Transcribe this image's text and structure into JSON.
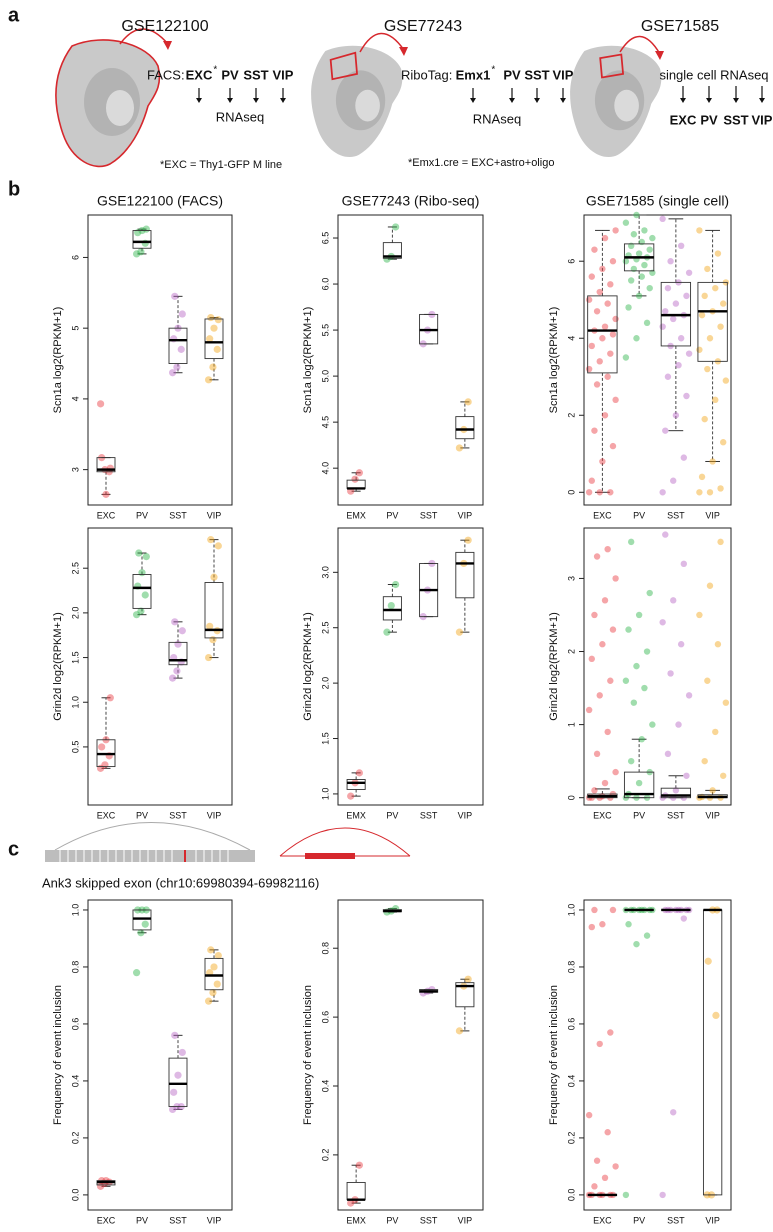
{
  "panel_labels": [
    "a",
    "b",
    "c"
  ],
  "schematics": [
    {
      "dataset": "GSE122100",
      "method": "FACS:",
      "cells": [
        {
          "name": "EXC",
          "color": "#e8383d",
          "star": "*"
        },
        {
          "name": "PV",
          "color": "#2db34a"
        },
        {
          "name": "SST",
          "color": "#b563c4"
        },
        {
          "name": "VIP",
          "color": "#f2a516"
        }
      ],
      "readout": "RNAseq",
      "footnote": "*EXC = Thy1-GFP M line"
    },
    {
      "dataset": "GSE77243",
      "method": "RiboTag:",
      "cells": [
        {
          "name": "Emx1",
          "color": "#e8383d",
          "star": "*"
        },
        {
          "name": "PV",
          "color": "#2db34a"
        },
        {
          "name": "SST",
          "color": "#b563c4"
        },
        {
          "name": "VIP",
          "color": "#f2a516"
        }
      ],
      "readout": "RNAseq",
      "footnote": "*Emx1.cre = EXC+astro+oligo"
    },
    {
      "dataset": "GSE71585",
      "method": "single cell RNAseq",
      "cells": [
        {
          "name": "EXC",
          "color": "#e8383d"
        },
        {
          "name": "PV",
          "color": "#2db34a"
        },
        {
          "name": "SST",
          "color": "#b563c4"
        },
        {
          "name": "VIP",
          "color": "#f2a516"
        }
      ]
    }
  ],
  "event_title": "Ank3 skipped exon (chr10:69980394-69982116)",
  "chart_data": [
    {
      "type": "box",
      "title": "GSE122100 (FACS)",
      "y_label": "Scn1a log2(RPKM+1)",
      "ylim": [
        2.5,
        6.6
      ],
      "yticks": [
        3,
        4,
        5,
        6
      ],
      "series": [
        {
          "name": "EXC",
          "color": "#e8383d",
          "whislo": 2.65,
          "q1": 2.97,
          "median": 3.0,
          "q3": 3.17,
          "whishi": 3.17,
          "points": [
            3.93,
            3.0,
            2.97,
            3.17,
            2.65,
            3.02
          ]
        },
        {
          "name": "PV",
          "color": "#2db34a",
          "whislo": 6.05,
          "q1": 6.13,
          "median": 6.22,
          "q3": 6.38,
          "whishi": 6.4,
          "points": [
            6.05,
            6.08,
            6.2,
            6.35,
            6.38,
            6.4
          ]
        },
        {
          "name": "SST",
          "color": "#b563c4",
          "whislo": 4.37,
          "q1": 4.5,
          "median": 4.83,
          "q3": 5.0,
          "whishi": 5.45,
          "points": [
            4.37,
            4.45,
            4.7,
            4.85,
            5.0,
            5.2,
            5.45
          ]
        },
        {
          "name": "VIP",
          "color": "#f2a516",
          "whislo": 4.27,
          "q1": 4.57,
          "median": 4.8,
          "q3": 5.13,
          "whishi": 5.15,
          "points": [
            4.27,
            4.45,
            4.7,
            4.85,
            5.0,
            5.12,
            5.15
          ]
        }
      ]
    },
    {
      "type": "box",
      "title": "GSE77243 (Ribo-seq)",
      "y_label": "Scn1a log2(RPKM+1)",
      "ylim": [
        3.6,
        6.75
      ],
      "yticks": [
        {
          "value": 4,
          "label": "4.0"
        },
        4.5,
        {
          "value": 5,
          "label": "5.0"
        },
        5.5,
        {
          "value": 6,
          "label": "6.0"
        },
        6.5
      ],
      "series": [
        {
          "name": "EMX",
          "color": "#e8383d",
          "whislo": 3.75,
          "q1": 3.78,
          "median": 3.78,
          "q3": 3.87,
          "whishi": 3.95,
          "points": [
            3.75,
            3.88,
            3.95
          ]
        },
        {
          "name": "PV",
          "color": "#2db34a",
          "whislo": 6.27,
          "q1": 6.28,
          "median": 6.3,
          "q3": 6.45,
          "whishi": 6.62,
          "points": [
            6.27,
            6.3,
            6.62
          ]
        },
        {
          "name": "SST",
          "color": "#b563c4",
          "whislo": 5.35,
          "q1": 5.35,
          "median": 5.5,
          "q3": 5.67,
          "whishi": 5.67,
          "points": [
            5.35,
            5.5,
            5.67
          ]
        },
        {
          "name": "VIP",
          "color": "#f2a516",
          "whislo": 4.22,
          "q1": 4.32,
          "median": 4.42,
          "q3": 4.56,
          "whishi": 4.72,
          "points": [
            4.22,
            4.42,
            4.72
          ]
        }
      ]
    },
    {
      "type": "box",
      "title": "GSE71585 (single cell)",
      "y_label": "Scn1a log2(RPKM+1)",
      "ylim": [
        -0.33,
        7.2
      ],
      "yticks": [
        0,
        2,
        4,
        6
      ],
      "series": [
        {
          "name": "EXC",
          "color": "#e8383d",
          "whislo": 0,
          "q1": 3.1,
          "median": 4.2,
          "q3": 5.1,
          "whishi": 6.8,
          "points": [
            0,
            0,
            0,
            0.3,
            0.8,
            1.2,
            1.6,
            2.0,
            2.4,
            2.8,
            3.0,
            3.2,
            3.4,
            3.6,
            3.8,
            4.0,
            4.1,
            4.2,
            4.3,
            4.5,
            4.7,
            4.9,
            5.0,
            5.2,
            5.4,
            5.6,
            5.8,
            6.0,
            6.3,
            6.6,
            6.8
          ]
        },
        {
          "name": "PV",
          "color": "#2db34a",
          "whislo": 5.1,
          "q1": 5.75,
          "median": 6.1,
          "q3": 6.45,
          "whishi": 7.2,
          "points": [
            3.5,
            4.0,
            4.4,
            4.8,
            5.1,
            5.3,
            5.5,
            5.6,
            5.7,
            5.8,
            5.9,
            6.0,
            6.05,
            6.1,
            6.15,
            6.2,
            6.3,
            6.4,
            6.5,
            6.6,
            6.7,
            6.8,
            7.0,
            7.2
          ]
        },
        {
          "name": "SST",
          "color": "#b563c4",
          "whislo": 1.6,
          "q1": 3.8,
          "median": 4.6,
          "q3": 5.45,
          "whishi": 7.1,
          "points": [
            0,
            0.3,
            0.9,
            1.6,
            2.0,
            2.5,
            3.0,
            3.3,
            3.6,
            3.8,
            4.0,
            4.3,
            4.5,
            4.6,
            4.7,
            4.9,
            5.1,
            5.3,
            5.45,
            5.7,
            6.0,
            6.4,
            7.1
          ]
        },
        {
          "name": "VIP",
          "color": "#f2a516",
          "whislo": 0.8,
          "q1": 3.4,
          "median": 4.7,
          "q3": 5.45,
          "whishi": 6.8,
          "points": [
            0,
            0,
            0.1,
            0.4,
            0.8,
            1.3,
            1.9,
            2.4,
            2.9,
            3.2,
            3.4,
            3.7,
            4.0,
            4.3,
            4.6,
            4.7,
            4.9,
            5.1,
            5.3,
            5.45,
            5.8,
            6.2,
            6.8
          ]
        }
      ]
    },
    {
      "type": "box",
      "y_label": "Grin2d log2(RPKM+1)",
      "ylim": [
        -0.15,
        2.95
      ],
      "yticks": [
        0.5,
        {
          "value": 1,
          "label": "1.0"
        },
        1.5,
        {
          "value": 2,
          "label": "2.0"
        },
        2.5
      ],
      "series": [
        {
          "name": "EXC",
          "color": "#e8383d",
          "whislo": 0.26,
          "q1": 0.28,
          "median": 0.42,
          "q3": 0.58,
          "whishi": 1.05,
          "points": [
            0.26,
            0.3,
            0.4,
            0.5,
            0.58,
            1.05
          ]
        },
        {
          "name": "PV",
          "color": "#2db34a",
          "whislo": 1.98,
          "q1": 2.05,
          "median": 2.28,
          "q3": 2.43,
          "whishi": 2.67,
          "points": [
            1.98,
            2.02,
            2.2,
            2.3,
            2.45,
            2.63,
            2.67
          ]
        },
        {
          "name": "SST",
          "color": "#b563c4",
          "whislo": 1.27,
          "q1": 1.42,
          "median": 1.47,
          "q3": 1.67,
          "whishi": 1.9,
          "points": [
            1.27,
            1.35,
            1.45,
            1.5,
            1.65,
            1.8,
            1.9
          ]
        },
        {
          "name": "VIP",
          "color": "#f2a516",
          "whislo": 1.5,
          "q1": 1.72,
          "median": 1.81,
          "q3": 2.34,
          "whishi": 2.82,
          "points": [
            1.5,
            1.7,
            1.8,
            1.85,
            2.4,
            2.75,
            2.82
          ]
        }
      ]
    },
    {
      "type": "box",
      "y_label": "Grin2d log2(RPKM+1)",
      "ylim": [
        0.9,
        3.4
      ],
      "yticks": [
        {
          "value": 1,
          "label": "1.0"
        },
        1.5,
        {
          "value": 2,
          "label": "2.0"
        },
        2.5,
        {
          "value": 3,
          "label": "3.0"
        }
      ],
      "series": [
        {
          "name": "EMX",
          "color": "#e8383d",
          "whislo": 0.98,
          "q1": 1.04,
          "median": 1.1,
          "q3": 1.13,
          "whishi": 1.19,
          "points": [
            0.98,
            1.1,
            1.19
          ]
        },
        {
          "name": "PV",
          "color": "#2db34a",
          "whislo": 2.46,
          "q1": 2.57,
          "median": 2.66,
          "q3": 2.78,
          "whishi": 2.89,
          "points": [
            2.46,
            2.7,
            2.89
          ]
        },
        {
          "name": "SST",
          "color": "#b563c4",
          "whislo": 2.6,
          "q1": 2.6,
          "median": 2.84,
          "q3": 3.08,
          "whishi": 3.08,
          "points": [
            2.6,
            2.84,
            3.08
          ]
        },
        {
          "name": "VIP",
          "color": "#f2a516",
          "whislo": 2.46,
          "q1": 2.77,
          "median": 3.08,
          "q3": 3.18,
          "whishi": 3.29,
          "points": [
            2.46,
            3.08,
            3.29
          ]
        }
      ]
    },
    {
      "type": "box",
      "y_label": "Grin2d log2(RPKM+1)",
      "ylim": [
        -0.1,
        3.69
      ],
      "yticks": [
        0,
        1,
        2,
        3
      ],
      "series": [
        {
          "name": "EXC",
          "color": "#e8383d",
          "whislo": 0,
          "q1": 0,
          "median": 0.02,
          "q3": 0.05,
          "whishi": 0.12,
          "points": [
            0,
            0,
            0,
            0,
            0.02,
            0.05,
            0.1,
            0.2,
            0.35,
            0.6,
            0.9,
            1.2,
            1.4,
            1.6,
            1.9,
            2.1,
            2.3,
            2.5,
            2.7,
            3.0,
            3.3,
            3.4
          ]
        },
        {
          "name": "PV",
          "color": "#2db34a",
          "whislo": 0,
          "q1": 0,
          "median": 0.05,
          "q3": 0.35,
          "whishi": 0.8,
          "points": [
            0,
            0,
            0,
            0.05,
            0.2,
            0.35,
            0.5,
            0.8,
            1.0,
            1.3,
            1.5,
            1.6,
            1.8,
            2.0,
            2.3,
            2.5,
            2.8,
            3.5
          ]
        },
        {
          "name": "SST",
          "color": "#b563c4",
          "whislo": 0,
          "q1": 0,
          "median": 0.03,
          "q3": 0.13,
          "whishi": 0.3,
          "points": [
            0,
            0,
            0,
            0.03,
            0.1,
            0.3,
            0.6,
            1.0,
            1.4,
            1.7,
            2.1,
            2.4,
            2.7,
            3.2,
            3.6
          ]
        },
        {
          "name": "VIP",
          "color": "#f2a516",
          "whislo": 0,
          "q1": 0,
          "median": 0.01,
          "q3": 0.04,
          "whishi": 0.1,
          "points": [
            0,
            0,
            0,
            0.01,
            0.1,
            0.3,
            0.5,
            0.9,
            1.3,
            1.6,
            2.1,
            2.5,
            2.9,
            3.5
          ]
        }
      ]
    },
    {
      "type": "box",
      "y_label": "Frequency of event inclusion",
      "ylim": [
        -0.053,
        1.035
      ],
      "yticks": [
        {
          "value": 0,
          "label": "0.0"
        },
        0.2,
        0.4,
        0.6,
        0.8,
        {
          "value": 1,
          "label": "1.0"
        }
      ],
      "series": [
        {
          "name": "EXC",
          "color": "#e8383d",
          "whislo": 0.03,
          "q1": 0.035,
          "median": 0.045,
          "q3": 0.05,
          "whishi": 0.05,
          "points": [
            0.03,
            0.04,
            0.045,
            0.05,
            0.05
          ]
        },
        {
          "name": "PV",
          "color": "#2db34a",
          "whislo": 0.92,
          "q1": 0.93,
          "median": 0.97,
          "q3": 1.0,
          "whishi": 1.0,
          "points": [
            0.78,
            0.92,
            0.95,
            1.0,
            1.0,
            1.0
          ]
        },
        {
          "name": "SST",
          "color": "#b563c4",
          "whislo": 0.3,
          "q1": 0.31,
          "median": 0.39,
          "q3": 0.48,
          "whishi": 0.56,
          "points": [
            0.3,
            0.31,
            0.31,
            0.36,
            0.42,
            0.5,
            0.56
          ]
        },
        {
          "name": "VIP",
          "color": "#f2a516",
          "whislo": 0.68,
          "q1": 0.72,
          "median": 0.77,
          "q3": 0.83,
          "whishi": 0.86,
          "points": [
            0.68,
            0.71,
            0.74,
            0.78,
            0.8,
            0.84,
            0.86
          ]
        }
      ]
    },
    {
      "type": "box",
      "y_label": "Frequency of event inclusion",
      "ylim": [
        0.04,
        0.94
      ],
      "yticks": [
        0.2,
        0.4,
        0.6,
        0.8
      ],
      "series": [
        {
          "name": "EMX",
          "color": "#e8383d",
          "whislo": 0.06,
          "q1": 0.07,
          "median": 0.07,
          "q3": 0.12,
          "whishi": 0.17,
          "points": [
            0.06,
            0.07,
            0.17
          ]
        },
        {
          "name": "PV",
          "color": "#2db34a",
          "whislo": 0.905,
          "q1": 0.906,
          "median": 0.908,
          "q3": 0.912,
          "whishi": 0.915,
          "points": [
            0.905,
            0.908,
            0.915
          ]
        },
        {
          "name": "SST",
          "color": "#b563c4",
          "whislo": 0.67,
          "q1": 0.672,
          "median": 0.675,
          "q3": 0.68,
          "whishi": 0.68,
          "points": [
            0.67,
            0.675,
            0.68
          ]
        },
        {
          "name": "VIP",
          "color": "#f2a516",
          "whislo": 0.56,
          "q1": 0.63,
          "median": 0.69,
          "q3": 0.7,
          "whishi": 0.71,
          "points": [
            0.56,
            0.69,
            0.71
          ]
        }
      ]
    },
    {
      "type": "box",
      "y_label": "Frequency of event inclusion",
      "ylim": [
        -0.053,
        1.035
      ],
      "yticks": [
        {
          "value": 0,
          "label": "0.0"
        },
        0.2,
        0.4,
        0.6,
        0.8,
        {
          "value": 1,
          "label": "1.0"
        }
      ],
      "series": [
        {
          "name": "EXC",
          "color": "#e8383d",
          "whislo": 0,
          "q1": 0,
          "median": 0,
          "q3": 0,
          "whishi": 0,
          "points": [
            0,
            0,
            0,
            0,
            0,
            0,
            0.03,
            0.06,
            0.1,
            0.12,
            0.22,
            0.28,
            0.53,
            0.57,
            0.94,
            0.95,
            1.0,
            1.0
          ]
        },
        {
          "name": "PV",
          "color": "#2db34a",
          "whislo": 1,
          "q1": 1,
          "median": 1,
          "q3": 1,
          "whishi": 1,
          "points": [
            0,
            0.88,
            0.91,
            0.95,
            1,
            1,
            1,
            1,
            1,
            1,
            1,
            1
          ]
        },
        {
          "name": "SST",
          "color": "#b563c4",
          "whislo": 1,
          "q1": 1,
          "median": 1,
          "q3": 1,
          "whishi": 1,
          "points": [
            0,
            0.29,
            0.97,
            1,
            1,
            1,
            1,
            1,
            1,
            1,
            1
          ]
        },
        {
          "name": "VIP",
          "color": "#f2a516",
          "whislo": 0,
          "q1": 0,
          "median": 1,
          "q3": 1,
          "whishi": 1,
          "points": [
            0,
            0,
            0.63,
            0.82,
            1,
            1
          ]
        }
      ]
    }
  ]
}
